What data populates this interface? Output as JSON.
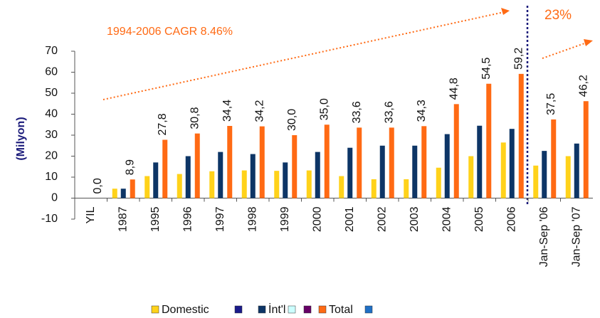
{
  "chart_data": {
    "type": "bar",
    "ylabel": "(Milyon)",
    "annotations": [
      "1994-2006   CAGR 8.46%",
      "23%"
    ],
    "categories": [
      "YIL",
      "1987",
      "1995",
      "1996",
      "1997",
      "1998",
      "1999",
      "2000",
      "2001",
      "2002",
      "2003",
      "2004",
      "2005",
      "2006",
      "Jan-Sep '06",
      "Jan-Sep '07"
    ],
    "series": [
      {
        "name": "Domestic",
        "color": "#ffd21a",
        "values": [
          null,
          4.5,
          10.5,
          11.5,
          12.8,
          13.2,
          13.0,
          13.2,
          10.5,
          9.0,
          9.0,
          14.5,
          20.0,
          26.5,
          15.5,
          20.0
        ]
      },
      {
        "name": "İnt'l",
        "color": "#0d3566",
        "values": [
          null,
          4.5,
          17.0,
          20.0,
          22.0,
          21.0,
          17.0,
          22.0,
          24.0,
          25.0,
          25.0,
          30.5,
          34.5,
          33.0,
          22.5,
          26.0
        ]
      },
      {
        "name": "Total",
        "color": "#ff6a14",
        "values": [
          0,
          8.9,
          27.8,
          30.8,
          34.4,
          34.2,
          30.0,
          35.0,
          33.6,
          33.6,
          34.3,
          44.8,
          54.5,
          59.2,
          37.5,
          46.2
        ],
        "value_labels": [
          "0,0",
          "8,9",
          "27,8",
          "30,8",
          "34,4",
          "34,2",
          "30,0",
          "35,0",
          "33,6",
          "33,6",
          "34,3",
          "44,8",
          "54,5",
          "59,2",
          "37,5",
          "46,2"
        ]
      }
    ],
    "ylim": [
      -10,
      70
    ],
    "yticks": [
      -10,
      0,
      10,
      20,
      30,
      40,
      50,
      60,
      70
    ]
  }
}
